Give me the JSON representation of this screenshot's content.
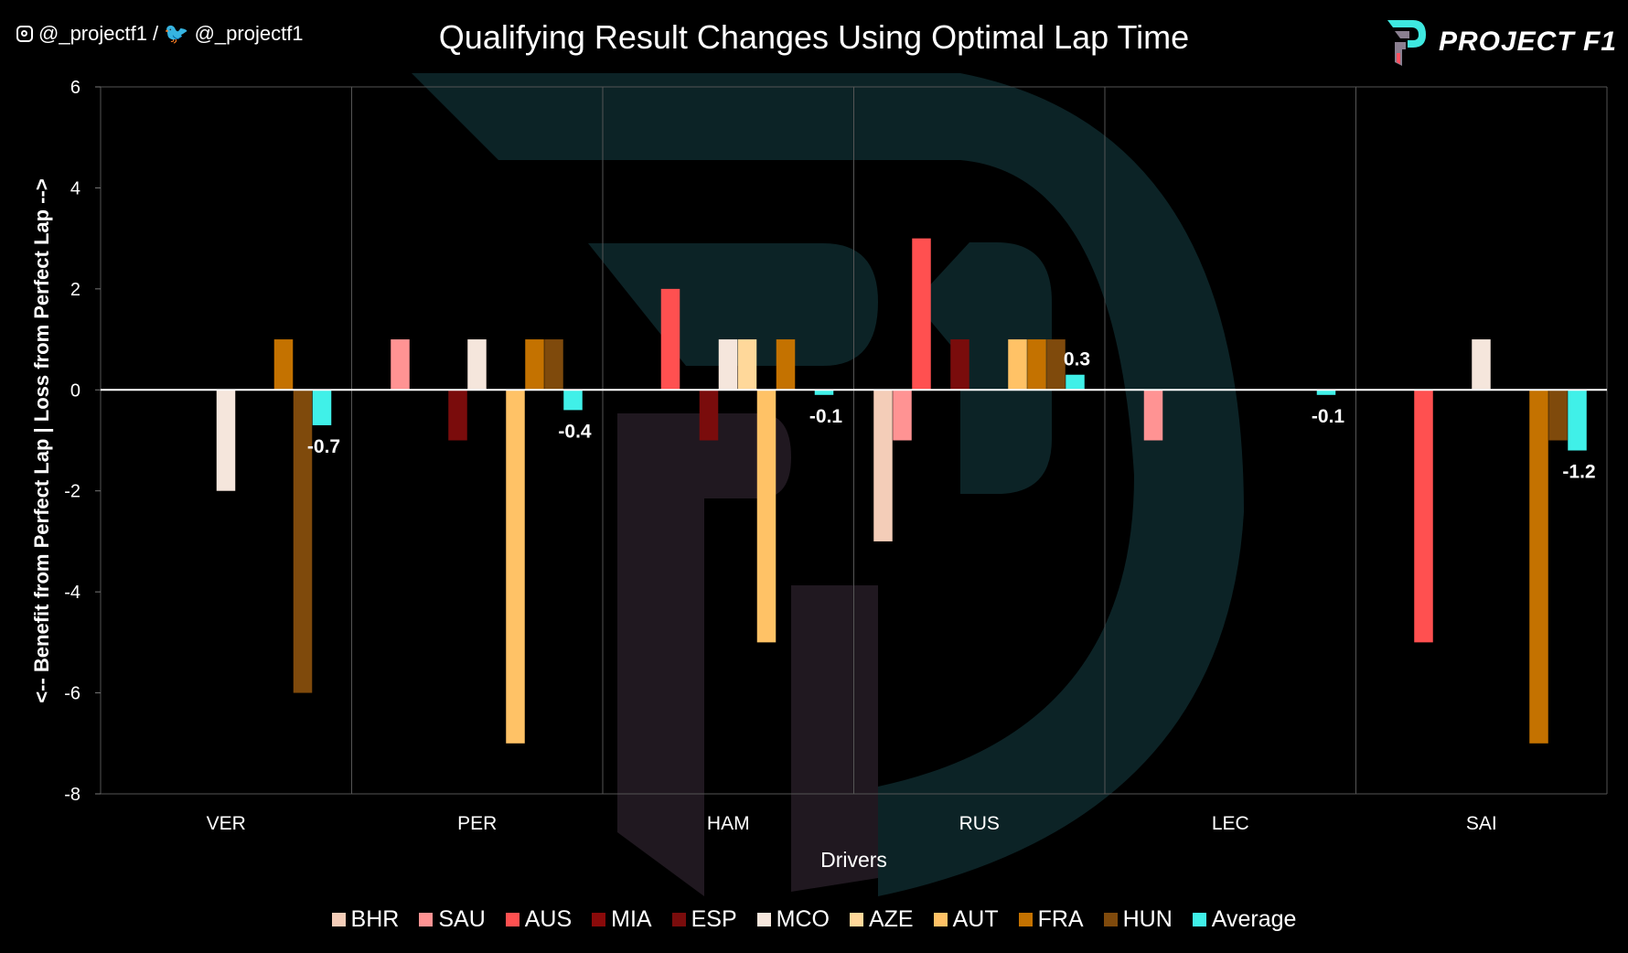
{
  "header": {
    "social_instagram": "@_projectf1 /",
    "social_twitter": "@_projectf1",
    "brand": "PROJECT F1"
  },
  "chart_data": {
    "type": "bar",
    "title": "Qualifying Result Changes Using Optimal Lap Time",
    "xlabel": "Drivers",
    "ylabel": "<-- Benefit from Perfect Lap  |  Loss from Perfect Lap -->",
    "ylim": [
      -8,
      6
    ],
    "yticks": [
      6,
      4,
      2,
      0,
      -2,
      -4,
      -6,
      -8
    ],
    "grid": "vertical category separators",
    "legend": "bottom",
    "categories": [
      "VER",
      "PER",
      "HAM",
      "RUS",
      "LEC",
      "SAI"
    ],
    "series": [
      {
        "name": "BHR",
        "color": "#f4cdb8",
        "values": [
          0,
          0,
          0,
          -3,
          0,
          0
        ]
      },
      {
        "name": "SAU",
        "color": "#ff9393",
        "values": [
          0,
          1,
          0,
          -1,
          -1,
          0
        ]
      },
      {
        "name": "AUS",
        "color": "#ff5050",
        "values": [
          0,
          0,
          2,
          3,
          0,
          -5
        ]
      },
      {
        "name": "MIA",
        "color": "#8a0a0a",
        "values": [
          0,
          0,
          0,
          0,
          0,
          0
        ]
      },
      {
        "name": "ESP",
        "color": "#7a0c0c",
        "values": [
          0,
          -1,
          -1,
          1,
          0,
          0
        ]
      },
      {
        "name": "MCO",
        "color": "#f5e6dc",
        "values": [
          -2,
          1,
          1,
          0,
          0,
          1
        ]
      },
      {
        "name": "AZE",
        "color": "#ffd89a",
        "values": [
          0,
          0,
          1,
          0,
          0,
          0
        ]
      },
      {
        "name": "AUT",
        "color": "#ffc266",
        "values": [
          0,
          -7,
          -5,
          1,
          0,
          0
        ]
      },
      {
        "name": "FRA",
        "color": "#c47200",
        "values": [
          1,
          1,
          1,
          1,
          0,
          -7
        ]
      },
      {
        "name": "HUN",
        "color": "#7f4a0c",
        "values": [
          -6,
          1,
          0,
          1,
          0,
          -1
        ]
      },
      {
        "name": "Average",
        "color": "#40f0e8",
        "values": [
          -0.7,
          -0.4,
          -0.1,
          0.3,
          -0.1,
          -1.2
        ],
        "data_labels": [
          "-0.7",
          "-0.4",
          "-0.1",
          "0.3",
          "-0.1",
          "-1.2"
        ]
      }
    ]
  }
}
